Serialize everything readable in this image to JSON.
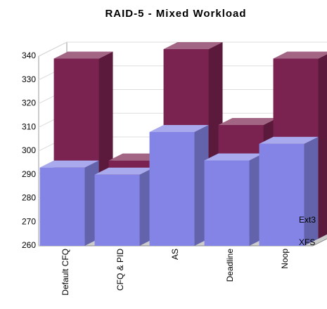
{
  "chart_data": {
    "type": "bar3d",
    "title": "RAID-5 - Mixed Workload",
    "categories": [
      "Default CFQ",
      "CFQ & PID",
      "AS",
      "Deadline",
      "Noop"
    ],
    "series": [
      {
        "name": "Ext3",
        "color": "#7a2350",
        "values": [
          336,
          293,
          340,
          308,
          336
        ]
      },
      {
        "name": "XFS",
        "color": "#8484e6",
        "values": [
          293,
          290,
          308,
          296,
          303
        ]
      }
    ],
    "ylim": [
      260,
      340
    ],
    "yticks": [
      260,
      270,
      280,
      290,
      300,
      310,
      320,
      330,
      340
    ],
    "grid": true
  }
}
